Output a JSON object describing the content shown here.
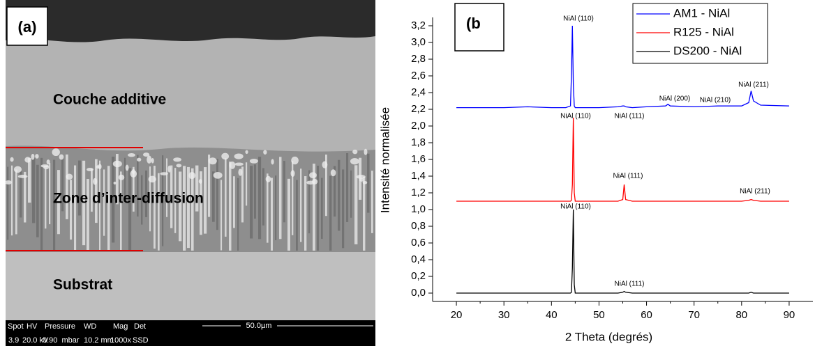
{
  "panel_a": {
    "label": "(a)",
    "layers": [
      "Couche additive",
      "Zone d’inter-diffusion",
      "Substrat"
    ],
    "info_header": [
      "Spot",
      "HV",
      "Pressure",
      "WD",
      "Mag",
      "Det"
    ],
    "info_values": [
      "3.9",
      "20.0 kV",
      "0.90  mbar",
      "10.2 mm",
      "1000x",
      "SSD"
    ],
    "scale": "50.0µm"
  },
  "chart_data": {
    "type": "line",
    "panel_label": "(b",
    "x_label": "2 Theta (degrés)",
    "y_label": "Intensité normalisée",
    "x": [
      20,
      25,
      30,
      35,
      40,
      43,
      44,
      44.2,
      44.4,
      44.6,
      44.8,
      45,
      46,
      50,
      54,
      55,
      55.3,
      55.6,
      57,
      60,
      64,
      64.5,
      65,
      70,
      75,
      80,
      81.5,
      82,
      82.5,
      84,
      90
    ],
    "series": [
      {
        "name": "AM1 - NiAl",
        "color": "#0000ff",
        "values": [
          2.22,
          2.22,
          2.22,
          2.23,
          2.22,
          2.22,
          2.24,
          2.6,
          3.2,
          2.5,
          2.24,
          2.22,
          2.22,
          2.22,
          2.23,
          2.24,
          2.24,
          2.23,
          2.22,
          2.23,
          2.24,
          2.26,
          2.24,
          2.23,
          2.24,
          2.24,
          2.28,
          2.42,
          2.3,
          2.25,
          2.24
        ]
      },
      {
        "name": "R125 - NiAl",
        "color": "#ff0000",
        "values": [
          1.1,
          1.1,
          1.1,
          1.1,
          1.1,
          1.1,
          1.1,
          1.11,
          1.3,
          2.1,
          1.2,
          1.1,
          1.1,
          1.1,
          1.1,
          1.12,
          1.3,
          1.12,
          1.1,
          1.1,
          1.1,
          1.1,
          1.1,
          1.1,
          1.1,
          1.1,
          1.11,
          1.12,
          1.11,
          1.1,
          1.1
        ]
      },
      {
        "name": "DS200 - NiAl",
        "color": "#000000",
        "values": [
          0,
          0,
          0,
          0,
          0,
          0,
          0,
          0.01,
          0.3,
          1.0,
          0.1,
          0,
          0,
          0,
          0,
          0.01,
          0.02,
          0.01,
          0,
          0,
          0,
          0,
          0,
          0,
          0,
          0,
          0,
          0.01,
          0,
          0,
          0
        ]
      }
    ],
    "annotations": [
      "NiAl (110)",
      "NiAl (111)",
      "NiAl (200)",
      "NiAl (210)",
      "NiAl (211)",
      "NiAl (110)",
      "NiAl (111)",
      "NiAl (211)",
      "NiAl (110)",
      "NiAl (111)"
    ],
    "xlim": [
      15,
      95
    ],
    "xticks": [
      20,
      30,
      40,
      50,
      60,
      70,
      80,
      90
    ],
    "ylim": [
      -0.1,
      3.3
    ],
    "yticks": [
      {
        "value": 0,
        "label": "0,0"
      },
      {
        "value": 0.2,
        "label": "0,2"
      },
      {
        "value": 0.4,
        "label": "0,4"
      },
      {
        "value": 0.6,
        "label": "0,6"
      },
      {
        "value": 0.8,
        "label": "0,8"
      },
      {
        "value": 1.0,
        "label": "1,0"
      },
      {
        "value": 1.2,
        "label": "1,2"
      },
      {
        "value": 1.4,
        "label": "1,4"
      },
      {
        "value": 1.6,
        "label": "1,6"
      },
      {
        "value": 1.8,
        "label": "1,8"
      },
      {
        "value": 2.0,
        "label": "2,0"
      },
      {
        "value": 2.2,
        "label": "2,2"
      },
      {
        "value": 2.4,
        "label": "2,4"
      },
      {
        "value": 2.6,
        "label": "2,6"
      },
      {
        "value": 2.8,
        "label": "2,8"
      },
      {
        "value": 3.0,
        "label": "3,0"
      },
      {
        "value": 3.2,
        "label": "3,2"
      }
    ],
    "grid": false,
    "legend": "top-right"
  }
}
